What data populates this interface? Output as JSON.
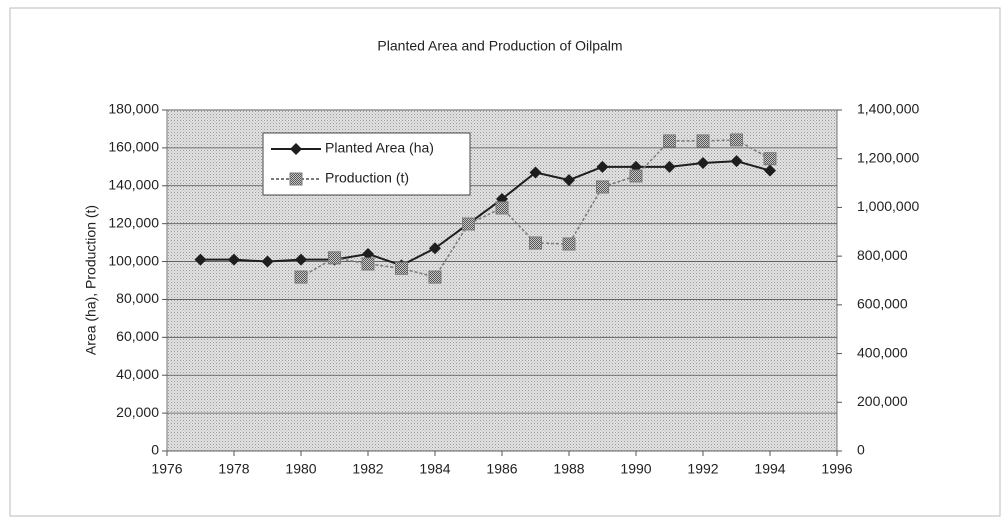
{
  "chart_data": {
    "type": "line",
    "title": "Planted Area and Production of Oilpalm",
    "y_label": "Area (ha), Production (t)",
    "xlim": [
      1976,
      1996
    ],
    "xticks": [
      1976,
      1978,
      1980,
      1982,
      1984,
      1986,
      1988,
      1990,
      1992,
      1994,
      1996
    ],
    "ylim": [
      0,
      180000
    ],
    "yticks": [
      0,
      {
        "value": 20000,
        "label": "20,000"
      },
      {
        "value": 40000,
        "label": "40,000"
      },
      {
        "value": 60000,
        "label": "60,000"
      },
      {
        "value": 80000,
        "label": "80,000"
      },
      {
        "value": 100000,
        "label": "100,000"
      },
      {
        "value": 120000,
        "label": "120,000"
      },
      {
        "value": 140000,
        "label": "140,000"
      },
      {
        "value": 160000,
        "label": "160,000"
      },
      {
        "value": 180000,
        "label": "180,000"
      }
    ],
    "y2lim": [
      0,
      1400000
    ],
    "y2ticks": [
      0,
      {
        "value": 200000,
        "label": "200,000"
      },
      {
        "value": 400000,
        "label": "400,000"
      },
      {
        "value": 600000,
        "label": "600,000"
      },
      {
        "value": 800000,
        "label": "800,000"
      },
      {
        "value": 1000000,
        "label": "1,000,000"
      },
      {
        "value": 1200000,
        "label": "1,200,000"
      },
      {
        "value": 1400000,
        "label": "1,400,000"
      }
    ],
    "grid": true,
    "legend": "upper left",
    "series": [
      {
        "name": "Planted Area (ha)",
        "color": "#1e1e1e",
        "marker": "diamond",
        "x": [
          1977,
          1978,
          1979,
          1980,
          1981,
          1982,
          1983,
          1984,
          1985,
          1986,
          1987,
          1988,
          1989,
          1990,
          1991,
          1992,
          1993,
          1994
        ],
        "values": [
          101000,
          101000,
          100000,
          101000,
          101000,
          104000,
          98000,
          107000,
          120000,
          133000,
          147000,
          143000,
          150000,
          150000,
          150000,
          152000,
          153000,
          148000
        ]
      },
      {
        "name": "Production (t)",
        "color": "#7a7a7a",
        "marker": "square",
        "axis": "y2",
        "x": [
          1980,
          1981,
          1982,
          1983,
          1984,
          1985,
          1986,
          1987,
          1988,
          1989,
          1990,
          1991,
          1992,
          1993,
          1994
        ],
        "values": [
          714000,
          793000,
          768000,
          750000,
          714000,
          932000,
          998000,
          854000,
          850000,
          1084000,
          1129000,
          1273000,
          1273000,
          1277000,
          1200000
        ]
      }
    ]
  }
}
